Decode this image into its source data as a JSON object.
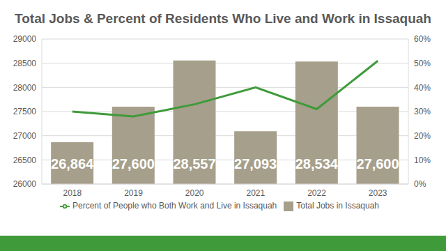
{
  "chart_data": {
    "type": "bar",
    "title": "Total Jobs & Percent of Residents Who Live and Work in Issaquah",
    "categories": [
      "2018",
      "2019",
      "2020",
      "2021",
      "2022",
      "2023"
    ],
    "series": [
      {
        "name": "Total Jobs in Issaquah",
        "type": "bar",
        "color": "#a69f8b",
        "values": [
          26864,
          27600,
          28557,
          27093,
          28534,
          27600
        ],
        "data_labels": true,
        "value_labels": [
          "26,864",
          "27,600",
          "28,557",
          "27,093",
          "28,534",
          "27,600"
        ]
      },
      {
        "name": "Percent of People who Both Work and Live in Issaquah",
        "type": "line",
        "axis": "y2",
        "color": "#3f9b3a",
        "values": [
          30,
          28,
          33,
          40,
          31,
          51
        ]
      }
    ],
    "ylim": [
      26000,
      29000
    ],
    "yticks": [
      26000,
      26500,
      27000,
      27500,
      28000,
      28500,
      29000
    ],
    "y2lim": [
      0,
      60
    ],
    "y2ticks": [
      {
        "value": 0,
        "label": "0%"
      },
      {
        "value": 10,
        "label": "10%"
      },
      {
        "value": 20,
        "label": "20%"
      },
      {
        "value": 30,
        "label": "30%"
      },
      {
        "value": 40,
        "label": "40%"
      },
      {
        "value": 50,
        "label": "50%"
      },
      {
        "value": 60,
        "label": "60%"
      }
    ],
    "grid": true,
    "legend": "bottom"
  }
}
